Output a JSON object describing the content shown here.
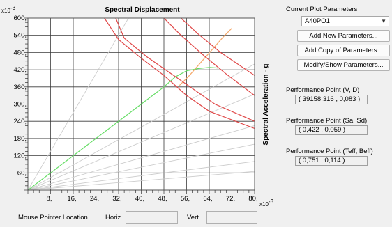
{
  "chart_data": {
    "type": "line",
    "title": "Spectral Displacement",
    "ylabel": "Spectral Acceleration - g",
    "x_exponent": "x10",
    "x_exponent_power": "-3",
    "y_exponent": "x10",
    "y_exponent_power": "-3",
    "xlim": [
      0,
      80
    ],
    "ylim": [
      0,
      600
    ],
    "x_ticks": [
      {
        "value": 8,
        "label": "8,"
      },
      {
        "value": 16,
        "label": "16,"
      },
      {
        "value": 24,
        "label": "24,"
      },
      {
        "value": 32,
        "label": "32,"
      },
      {
        "value": 40,
        "label": "40,"
      },
      {
        "value": 48,
        "label": "48,"
      },
      {
        "value": 56,
        "label": "56,"
      },
      {
        "value": 64,
        "label": "64,"
      },
      {
        "value": 72,
        "label": "72,"
      },
      {
        "value": 80,
        "label": "80,"
      }
    ],
    "y_ticks": [
      {
        "value": 60,
        "label": "60,"
      },
      {
        "value": 120,
        "label": "120,"
      },
      {
        "value": 180,
        "label": "180,"
      },
      {
        "value": 240,
        "label": "240,"
      },
      {
        "value": 300,
        "label": "300,"
      },
      {
        "value": 360,
        "label": "360,"
      },
      {
        "value": 420,
        "label": "420,"
      },
      {
        "value": 480,
        "label": "480,"
      },
      {
        "value": 540,
        "label": "540,"
      },
      {
        "value": 600,
        "label": "600,"
      }
    ],
    "grid": true,
    "series": [
      {
        "color": "#cccccc",
        "points": [
          [
            0,
            0
          ],
          [
            35.5,
            600
          ]
        ]
      },
      {
        "color": "#cccccc",
        "points": [
          [
            0,
            0
          ],
          [
            80,
            440
          ]
        ]
      },
      {
        "color": "#cccccc",
        "points": [
          [
            0,
            0
          ],
          [
            80,
            335
          ]
        ]
      },
      {
        "color": "#cccccc",
        "points": [
          [
            0,
            0
          ],
          [
            80,
            225
          ]
        ]
      },
      {
        "color": "#cccccc",
        "points": [
          [
            0,
            0
          ],
          [
            80,
            160
          ]
        ]
      },
      {
        "color": "#cccccc",
        "points": [
          [
            0,
            0
          ],
          [
            80,
            100
          ]
        ]
      },
      {
        "color": "#cccccc",
        "points": [
          [
            0,
            0
          ],
          [
            80,
            65
          ]
        ]
      },
      {
        "color": "#66dd66",
        "points": [
          [
            0,
            0
          ],
          [
            8,
            60
          ],
          [
            16,
            120
          ],
          [
            24,
            180
          ],
          [
            32,
            240
          ],
          [
            40,
            300
          ],
          [
            48,
            360
          ],
          [
            52,
            395
          ],
          [
            56,
            416
          ],
          [
            60,
            424
          ],
          [
            64,
            428
          ],
          [
            67,
            426
          ]
        ]
      },
      {
        "color": "#f5a96b",
        "points": [
          [
            53.5,
            365
          ],
          [
            57,
            400
          ],
          [
            61,
            445
          ],
          [
            65,
            490
          ],
          [
            69,
            535
          ],
          [
            72,
            565
          ]
        ]
      },
      {
        "color": "#e04848",
        "points": [
          [
            27,
            600
          ],
          [
            32,
            525
          ],
          [
            40,
            460
          ],
          [
            48,
            400
          ],
          [
            56,
            330
          ],
          [
            64,
            275
          ],
          [
            80,
            215
          ]
        ]
      },
      {
        "color": "#e04848",
        "points": [
          [
            31,
            600
          ],
          [
            34,
            530
          ],
          [
            42,
            465
          ],
          [
            50,
            410
          ],
          [
            58,
            355
          ],
          [
            66,
            300
          ],
          [
            80,
            240
          ]
        ]
      },
      {
        "color": "#e04848",
        "points": [
          [
            48,
            600
          ],
          [
            54,
            540
          ],
          [
            62,
            470
          ],
          [
            70,
            405
          ],
          [
            80,
            330
          ]
        ]
      },
      {
        "color": "#e04848",
        "points": [
          [
            54,
            600
          ],
          [
            60,
            545
          ],
          [
            68,
            480
          ],
          [
            80,
            400
          ]
        ]
      }
    ]
  },
  "panel": {
    "current_params_label": "Current Plot Parameters",
    "selected_param": "A40PO1",
    "add_new_label": "Add New Parameters...",
    "add_copy_label": "Add Copy of Parameters...",
    "modify_label": "Modify/Show Parameters...",
    "pp_vd_label": "Performance Point (V, D)",
    "pp_vd_value": "( 39158,316 , 0,083 )",
    "pp_sasd_label": "Performance Point (Sa, Sd)",
    "pp_sasd_value": "( 0,422 , 0,059 )",
    "pp_teff_label": "Performance Point (Teff, Beff)",
    "pp_teff_value": "( 0,751 , 0,114 )"
  },
  "bottom": {
    "mouse_label": "Mouse Pointer Location",
    "horiz_label": "Horiz",
    "vert_label": "Vert"
  }
}
